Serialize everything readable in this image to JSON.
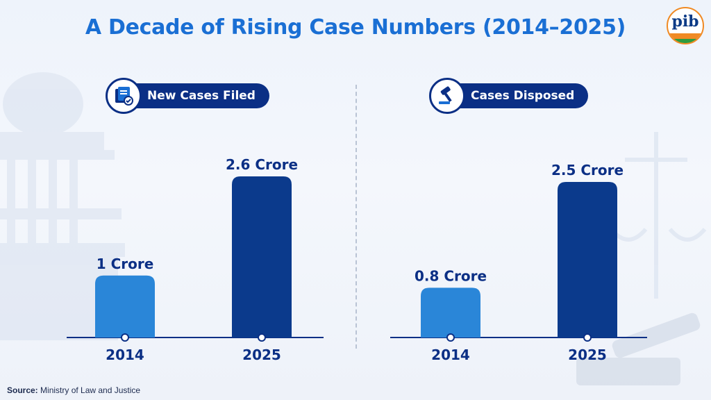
{
  "title": "A Decade of Rising Case Numbers (2014–2025)",
  "logo_text": "pib",
  "source_label": "Source:",
  "source_text": "Ministry of Law and Justice",
  "colors": {
    "light_bar": "#2a86d8",
    "dark_bar": "#0b3a8c",
    "title": "#1a6fd4",
    "pill": "#0b2f85"
  },
  "chart_data": [
    {
      "type": "bar",
      "title": "New Cases Filed",
      "icon": "documents-check-icon",
      "categories": [
        "2014",
        "2025"
      ],
      "values": [
        1,
        2.6
      ],
      "value_labels": [
        "1 Crore",
        "2.6 Crore"
      ],
      "ylim": [
        0,
        2.6
      ]
    },
    {
      "type": "bar",
      "title": "Cases Disposed",
      "icon": "gavel-icon",
      "categories": [
        "2014",
        "2025"
      ],
      "values": [
        0.8,
        2.5
      ],
      "value_labels": [
        "0.8 Crore",
        "2.5 Crore"
      ],
      "ylim": [
        0,
        2.6
      ]
    }
  ]
}
